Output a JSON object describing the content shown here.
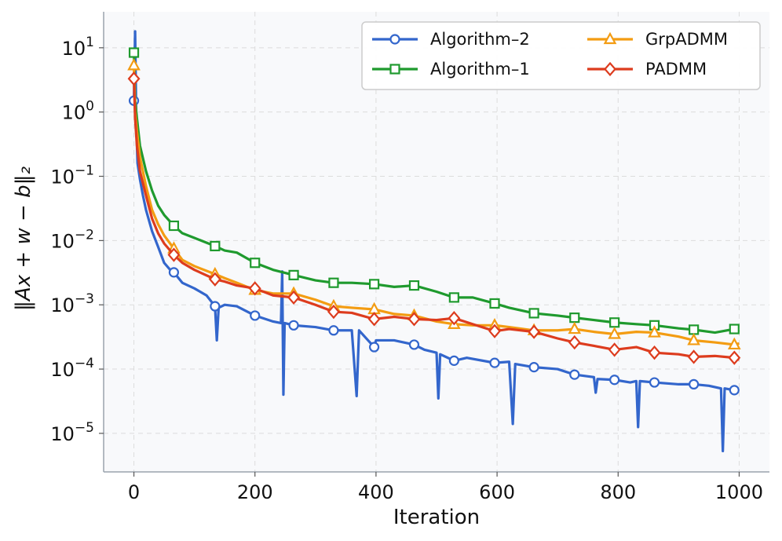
{
  "chart_data": {
    "type": "line",
    "xlabel": "Iteration",
    "ylabel": "‖Ax + w − b‖₂",
    "yscale": "log",
    "xlim": [
      -50,
      1050
    ],
    "ylim_exp": [
      -5.6,
      1.56
    ],
    "xticks": [
      0,
      200,
      400,
      600,
      800,
      1000
    ],
    "xtick_labels": [
      "0",
      "200",
      "400",
      "600",
      "800",
      "1000"
    ],
    "yticks_exp": [
      1,
      0,
      -1,
      -2,
      -3,
      -4,
      -5
    ],
    "ytick_bases": [
      "10",
      "10",
      "10",
      "10",
      "10",
      "10",
      "10"
    ],
    "ytick_exps": [
      "1",
      "0",
      "−1",
      "−2",
      "−3",
      "−4",
      "−5"
    ],
    "grid": true,
    "legend_position": "top-right",
    "series": [
      {
        "name": "Algorithm–2",
        "color": "#3366cc",
        "marker": "circle",
        "points": [
          [
            0,
            1.5
          ],
          [
            2,
            18
          ],
          [
            4,
            0.6
          ],
          [
            6,
            0.16
          ],
          [
            10,
            0.09
          ],
          [
            15,
            0.05
          ],
          [
            20,
            0.03
          ],
          [
            30,
            0.014
          ],
          [
            40,
            0.008
          ],
          [
            50,
            0.0045
          ],
          [
            60,
            0.0035
          ],
          [
            66,
            0.0032
          ],
          [
            80,
            0.0022
          ],
          [
            100,
            0.0018
          ],
          [
            120,
            0.0014
          ],
          [
            134,
            0.00095
          ],
          [
            137,
            0.00028
          ],
          [
            140,
            0.0009
          ],
          [
            150,
            0.001
          ],
          [
            170,
            0.00095
          ],
          [
            200,
            0.00068
          ],
          [
            230,
            0.00055
          ],
          [
            243,
            0.00052
          ],
          [
            245,
            0.0033
          ],
          [
            247,
            4e-05
          ],
          [
            249,
            0.00052
          ],
          [
            264,
            0.00048
          ],
          [
            300,
            0.00045
          ],
          [
            330,
            0.0004
          ],
          [
            360,
            0.0004
          ],
          [
            368,
            3.8e-05
          ],
          [
            372,
            0.0004
          ],
          [
            397,
            0.00022
          ],
          [
            400,
            0.00028
          ],
          [
            430,
            0.00028
          ],
          [
            463,
            0.00024
          ],
          [
            480,
            0.0002
          ],
          [
            500,
            0.00018
          ],
          [
            503,
            3.5e-05
          ],
          [
            506,
            0.00017
          ],
          [
            529,
            0.000135
          ],
          [
            550,
            0.00015
          ],
          [
            596,
            0.000125
          ],
          [
            620,
            0.00013
          ],
          [
            626,
            1.4e-05
          ],
          [
            630,
            0.00012
          ],
          [
            661,
            0.000107
          ],
          [
            700,
            0.0001
          ],
          [
            728,
            8.2e-05
          ],
          [
            760,
            7.5e-05
          ],
          [
            763,
            4.3e-05
          ],
          [
            766,
            7e-05
          ],
          [
            794,
            6.8e-05
          ],
          [
            820,
            6.2e-05
          ],
          [
            830,
            6.5e-05
          ],
          [
            833,
            1.25e-05
          ],
          [
            836,
            6.5e-05
          ],
          [
            860,
            6.2e-05
          ],
          [
            900,
            5.8e-05
          ],
          [
            925,
            5.8e-05
          ],
          [
            950,
            5.5e-05
          ],
          [
            970,
            5e-05
          ],
          [
            973,
            5.3e-06
          ],
          [
            976,
            5e-05
          ],
          [
            992,
            4.7e-05
          ],
          [
            1000,
            4.6e-05
          ]
        ],
        "markers": [
          [
            0,
            1.5
          ],
          [
            66,
            0.0032
          ],
          [
            134,
            0.00095
          ],
          [
            200,
            0.00068
          ],
          [
            264,
            0.00048
          ],
          [
            330,
            0.0004
          ],
          [
            397,
            0.00022
          ],
          [
            463,
            0.00024
          ],
          [
            529,
            0.000135
          ],
          [
            596,
            0.000125
          ],
          [
            661,
            0.000107
          ],
          [
            728,
            8.2e-05
          ],
          [
            794,
            6.8e-05
          ],
          [
            860,
            6.2e-05
          ],
          [
            925,
            5.8e-05
          ],
          [
            992,
            4.7e-05
          ]
        ]
      },
      {
        "name": "Algorithm–1",
        "color": "#1f9a2e",
        "marker": "square",
        "points": [
          [
            0,
            8.4
          ],
          [
            2,
            1.5
          ],
          [
            5,
            0.8
          ],
          [
            10,
            0.3
          ],
          [
            20,
            0.12
          ],
          [
            30,
            0.06
          ],
          [
            40,
            0.035
          ],
          [
            50,
            0.025
          ],
          [
            66,
            0.017
          ],
          [
            80,
            0.013
          ],
          [
            100,
            0.011
          ],
          [
            134,
            0.0082
          ],
          [
            150,
            0.007
          ],
          [
            170,
            0.0065
          ],
          [
            200,
            0.0045
          ],
          [
            230,
            0.0035
          ],
          [
            264,
            0.0029
          ],
          [
            300,
            0.0024
          ],
          [
            330,
            0.0022
          ],
          [
            360,
            0.0022
          ],
          [
            397,
            0.0021
          ],
          [
            430,
            0.0019
          ],
          [
            463,
            0.002
          ],
          [
            500,
            0.0016
          ],
          [
            529,
            0.0013
          ],
          [
            560,
            0.0013
          ],
          [
            596,
            0.00105
          ],
          [
            620,
            0.0009
          ],
          [
            661,
            0.00074
          ],
          [
            700,
            0.00068
          ],
          [
            728,
            0.00063
          ],
          [
            760,
            0.00058
          ],
          [
            794,
            0.00053
          ],
          [
            830,
            0.0005
          ],
          [
            860,
            0.00048
          ],
          [
            900,
            0.00043
          ],
          [
            925,
            0.00041
          ],
          [
            960,
            0.00037
          ],
          [
            992,
            0.00042
          ],
          [
            1000,
            0.00038
          ]
        ],
        "markers": [
          [
            0,
            8.4
          ],
          [
            66,
            0.017
          ],
          [
            134,
            0.0082
          ],
          [
            200,
            0.0045
          ],
          [
            264,
            0.0029
          ],
          [
            330,
            0.0022
          ],
          [
            397,
            0.0021
          ],
          [
            463,
            0.002
          ],
          [
            529,
            0.0013
          ],
          [
            596,
            0.00105
          ],
          [
            661,
            0.00074
          ],
          [
            728,
            0.00063
          ],
          [
            794,
            0.00053
          ],
          [
            860,
            0.00048
          ],
          [
            925,
            0.00041
          ],
          [
            992,
            0.00042
          ]
        ]
      },
      {
        "name": "GrpADMM",
        "color": "#f39c12",
        "marker": "triangle",
        "points": [
          [
            0,
            5.3
          ],
          [
            2,
            1.0
          ],
          [
            5,
            0.5
          ],
          [
            10,
            0.2
          ],
          [
            20,
            0.07
          ],
          [
            30,
            0.03
          ],
          [
            40,
            0.018
          ],
          [
            50,
            0.012
          ],
          [
            66,
            0.0075
          ],
          [
            80,
            0.005
          ],
          [
            100,
            0.004
          ],
          [
            134,
            0.003
          ],
          [
            150,
            0.0026
          ],
          [
            170,
            0.0022
          ],
          [
            200,
            0.0017
          ],
          [
            230,
            0.0015
          ],
          [
            264,
            0.0015
          ],
          [
            300,
            0.0012
          ],
          [
            330,
            0.00095
          ],
          [
            360,
            0.0009
          ],
          [
            397,
            0.00085
          ],
          [
            430,
            0.00072
          ],
          [
            463,
            0.00068
          ],
          [
            500,
            0.00055
          ],
          [
            529,
            0.0005
          ],
          [
            560,
            0.00048
          ],
          [
            596,
            0.00048
          ],
          [
            620,
            0.00045
          ],
          [
            661,
            0.0004
          ],
          [
            700,
            0.0004
          ],
          [
            728,
            0.00042
          ],
          [
            760,
            0.00038
          ],
          [
            794,
            0.00035
          ],
          [
            830,
            0.00038
          ],
          [
            860,
            0.00037
          ],
          [
            900,
            0.00032
          ],
          [
            925,
            0.00028
          ],
          [
            960,
            0.00026
          ],
          [
            992,
            0.00024
          ],
          [
            1000,
            0.00025
          ]
        ],
        "markers": [
          [
            0,
            5.3
          ],
          [
            66,
            0.0075
          ],
          [
            134,
            0.003
          ],
          [
            200,
            0.0017
          ],
          [
            264,
            0.0015
          ],
          [
            330,
            0.00095
          ],
          [
            397,
            0.00085
          ],
          [
            463,
            0.00068
          ],
          [
            529,
            0.0005
          ],
          [
            596,
            0.00048
          ],
          [
            661,
            0.0004
          ],
          [
            728,
            0.00042
          ],
          [
            794,
            0.00035
          ],
          [
            860,
            0.00037
          ],
          [
            925,
            0.00028
          ],
          [
            992,
            0.00024
          ]
        ]
      },
      {
        "name": "PADMM",
        "color": "#dd3c1e",
        "marker": "diamond",
        "points": [
          [
            0,
            3.3
          ],
          [
            2,
            0.8
          ],
          [
            5,
            0.3
          ],
          [
            10,
            0.12
          ],
          [
            20,
            0.05
          ],
          [
            30,
            0.022
          ],
          [
            40,
            0.013
          ],
          [
            50,
            0.009
          ],
          [
            66,
            0.006
          ],
          [
            80,
            0.0045
          ],
          [
            100,
            0.0035
          ],
          [
            134,
            0.0025
          ],
          [
            150,
            0.0023
          ],
          [
            170,
            0.002
          ],
          [
            200,
            0.0018
          ],
          [
            230,
            0.0014
          ],
          [
            264,
            0.0013
          ],
          [
            300,
            0.001
          ],
          [
            330,
            0.00078
          ],
          [
            360,
            0.00075
          ],
          [
            397,
            0.0006
          ],
          [
            430,
            0.00065
          ],
          [
            463,
            0.0006
          ],
          [
            500,
            0.00058
          ],
          [
            529,
            0.00062
          ],
          [
            560,
            0.0005
          ],
          [
            596,
            0.00039
          ],
          [
            620,
            0.00042
          ],
          [
            661,
            0.00038
          ],
          [
            700,
            0.0003
          ],
          [
            728,
            0.00026
          ],
          [
            760,
            0.00023
          ],
          [
            794,
            0.0002
          ],
          [
            830,
            0.00022
          ],
          [
            860,
            0.00018
          ],
          [
            900,
            0.00017
          ],
          [
            925,
            0.000155
          ],
          [
            960,
            0.00016
          ],
          [
            992,
            0.00015
          ],
          [
            1000,
            0.00014
          ]
        ],
        "markers": [
          [
            0,
            3.3
          ],
          [
            66,
            0.006
          ],
          [
            134,
            0.0025
          ],
          [
            200,
            0.0018
          ],
          [
            264,
            0.0013
          ],
          [
            330,
            0.00078
          ],
          [
            397,
            0.0006
          ],
          [
            463,
            0.0006
          ],
          [
            529,
            0.00062
          ],
          [
            596,
            0.00039
          ],
          [
            661,
            0.00038
          ],
          [
            728,
            0.00026
          ],
          [
            794,
            0.0002
          ],
          [
            860,
            0.00018
          ],
          [
            925,
            0.000155
          ],
          [
            992,
            0.00015
          ]
        ]
      }
    ]
  }
}
